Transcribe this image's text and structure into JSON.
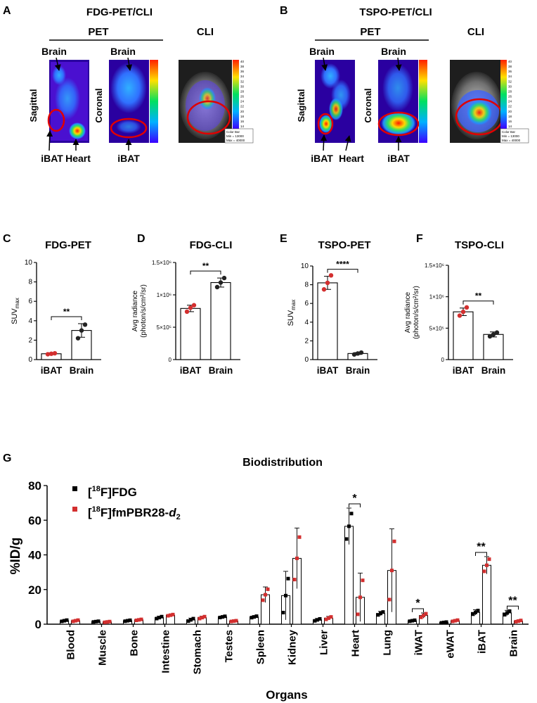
{
  "panelA": {
    "letter": "A",
    "title": "FDG-PET/CLI",
    "pet_label": "PET",
    "cli_label": "CLI",
    "sagittal": "Sagittal",
    "coronal": "Coronal",
    "brain1": "Brain",
    "brain2": "Brain",
    "ibat1": "iBAT",
    "heart": "Heart",
    "ibat2": "iBAT"
  },
  "panelB": {
    "letter": "B",
    "title": "TSPO-PET/CLI",
    "pet_label": "PET",
    "cli_label": "CLI",
    "sagittal": "Sagittal",
    "coronal": "Coronal",
    "brain1": "Brain",
    "brain2": "Brain",
    "ibat1": "iBAT",
    "heart": "Heart",
    "ibat2": "iBAT"
  },
  "colorbars": {
    "ticks": [
      "40",
      "38",
      "36",
      "34",
      "32",
      "30",
      "28",
      "26",
      "24",
      "22",
      "20",
      "18",
      "16",
      "14"
    ],
    "box_title": "Color Bar",
    "box_min": "Min = 13000",
    "box_max": "Max = 40000"
  },
  "chart_data": [
    {
      "id": "C",
      "type": "bar",
      "title": "FDG-PET",
      "ylabel": "SUVmax",
      "categories": [
        "iBAT",
        "Brain"
      ],
      "values": [
        0.6,
        3.0
      ],
      "errors": [
        0.1,
        0.7
      ],
      "points": [
        [
          0.55,
          0.6,
          0.65
        ],
        [
          2.2,
          3.0,
          3.6
        ]
      ],
      "point_colors": [
        "#d32f2f",
        "#222222"
      ],
      "ylim": [
        0,
        10
      ],
      "yticks": [
        0,
        2,
        4,
        6,
        8,
        10
      ],
      "ytick_labels": [
        "0",
        "2",
        "4",
        "6",
        "8",
        "10"
      ],
      "significance": "**"
    },
    {
      "id": "D",
      "type": "bar",
      "title": "FDG-CLI",
      "ylabel": "Avg radiance (photon/s/cm²/sr)",
      "categories": [
        "iBAT",
        "Brain"
      ],
      "values": [
        790000,
        1190000
      ],
      "errors": [
        50000,
        70000
      ],
      "points": [
        [
          740000,
          800000,
          840000
        ],
        [
          1120000,
          1190000,
          1260000
        ]
      ],
      "point_colors": [
        "#d32f2f",
        "#222222"
      ],
      "ylim": [
        0,
        1500000
      ],
      "yticks": [
        0,
        500000,
        1000000,
        1500000
      ],
      "ytick_labels": [
        "0",
        "5×10⁵",
        "1×10⁶",
        "1.5×10⁶"
      ],
      "significance": "**"
    },
    {
      "id": "E",
      "type": "bar",
      "title": "TSPO-PET",
      "ylabel": "SUVmax",
      "categories": [
        "iBAT",
        "Brain"
      ],
      "values": [
        8.2,
        0.65
      ],
      "errors": [
        0.7,
        0.1
      ],
      "points": [
        [
          7.5,
          8.2,
          9.0
        ],
        [
          0.55,
          0.65,
          0.75
        ]
      ],
      "point_colors": [
        "#d32f2f",
        "#222222"
      ],
      "ylim": [
        0,
        10
      ],
      "yticks": [
        0,
        2,
        4,
        6,
        8,
        10
      ],
      "ytick_labels": [
        "0",
        "2",
        "4",
        "6",
        "8",
        "10"
      ],
      "significance": "****"
    },
    {
      "id": "F",
      "type": "bar",
      "title": "TSPO-CLI",
      "ylabel": "Avg radiance (photon/s/cm²/sr)",
      "categories": [
        "iBAT",
        "Brain"
      ],
      "values": [
        760000,
        400000
      ],
      "errors": [
        60000,
        40000
      ],
      "points": [
        [
          700000,
          760000,
          830000
        ],
        [
          370000,
          400000,
          430000
        ]
      ],
      "point_colors": [
        "#d32f2f",
        "#222222"
      ],
      "ylim": [
        0,
        1500000
      ],
      "yticks": [
        0,
        500000,
        1000000,
        1500000
      ],
      "ytick_labels": [
        "0",
        "5×10⁵",
        "1×10⁶",
        "1.5×10⁶"
      ],
      "significance": "**"
    },
    {
      "id": "G",
      "type": "bar",
      "title": "Biodistribution",
      "xlabel": "Organs",
      "ylabel": "%ID/g",
      "ylim": [
        0,
        80
      ],
      "yticks": [
        0,
        20,
        40,
        60,
        80
      ],
      "categories": [
        "Blood",
        "Muscle",
        "Bone",
        "Intestine",
        "Stomach",
        "Testes",
        "Spleen",
        "Kidney",
        "Liver",
        "Heart",
        "Lung",
        "iWAT",
        "eWAT",
        "iBAT",
        "Brain"
      ],
      "series": [
        {
          "name": "[18F]FDG",
          "color": "#000000",
          "values": [
            2.0,
            1.5,
            2.0,
            3.8,
            2.5,
            4.2,
            4.2,
            16.5,
            2.5,
            56.5,
            6.2,
            2.0,
            1.0,
            6.8,
            6.5
          ],
          "errors": [
            0.5,
            0.3,
            0.4,
            0.8,
            1.0,
            0.5,
            0.6,
            14.0,
            0.8,
            10.5,
            1.2,
            0.4,
            0.3,
            1.5,
            1.5
          ]
        },
        {
          "name": "[18F]fmPBR28-d2",
          "color": "#d32f2f",
          "values": [
            2.0,
            1.3,
            2.5,
            5.2,
            3.8,
            1.8,
            17.0,
            38.0,
            3.5,
            15.5,
            31.0,
            5.0,
            2.0,
            34.0,
            1.8
          ],
          "errors": [
            0.5,
            0.3,
            0.4,
            0.5,
            0.8,
            0.3,
            4.5,
            17.5,
            1.0,
            14.0,
            24.0,
            1.5,
            0.5,
            5.0,
            0.5
          ]
        }
      ],
      "significance": [
        {
          "category": "Heart",
          "label": "*"
        },
        {
          "category": "iWAT",
          "label": "*"
        },
        {
          "category": "iBAT",
          "label": "**"
        },
        {
          "category": "Brain",
          "label": "**"
        }
      ]
    }
  ],
  "panel_letters": {
    "C": "C",
    "D": "D",
    "E": "E",
    "F": "F",
    "G": "G"
  },
  "legend": {
    "fdg_iso": "18",
    "fdg_pre": "[",
    "fdg_post": "F]FDG",
    "pbr_iso": "18",
    "pbr_pre": "[",
    "pbr_mid": "F]fmPBR28-",
    "pbr_d": "d",
    "pbr_sub": "2"
  },
  "axis_text": {
    "suv": "SUV",
    "suv_sub": "max",
    "radiance1": "Avg radiance",
    "radiance2": "(photon/s/cm²/sr)"
  }
}
